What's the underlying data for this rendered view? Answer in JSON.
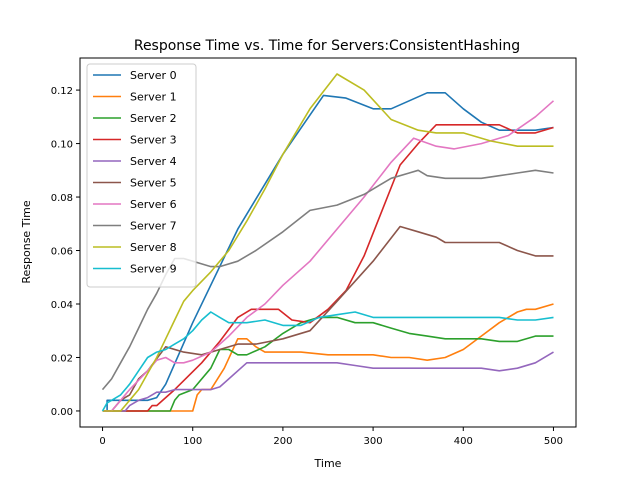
{
  "chart_data": {
    "type": "line",
    "title": "Response Time vs. Time for Servers:ConsistentHashing",
    "xlabel": "Time",
    "ylabel": "Response Time",
    "xlim": [
      -25,
      525
    ],
    "ylim": [
      -0.006,
      0.132
    ],
    "xticks": [
      0,
      100,
      200,
      300,
      400,
      500
    ],
    "yticks": [
      0.0,
      0.02,
      0.04,
      0.06,
      0.08,
      0.1,
      0.12
    ],
    "legend_position": "top-left",
    "grid": false,
    "series": [
      {
        "name": "Server 0",
        "color": "#1f77b4",
        "x": [
          0,
          5,
          5,
          50,
          60,
          70,
          100,
          150,
          200,
          245,
          270,
          300,
          320,
          340,
          360,
          380,
          400,
          420,
          440,
          460,
          480,
          500
        ],
        "y": [
          0,
          0,
          0.004,
          0.004,
          0.005,
          0.01,
          0.033,
          0.068,
          0.096,
          0.118,
          0.117,
          0.113,
          0.113,
          0.116,
          0.119,
          0.119,
          0.113,
          0.108,
          0.105,
          0.105,
          0.105,
          0.106
        ]
      },
      {
        "name": "Server 1",
        "color": "#ff7f0e",
        "x": [
          0,
          100,
          105,
          110,
          120,
          135,
          150,
          160,
          170,
          180,
          200,
          220,
          250,
          300,
          320,
          340,
          360,
          380,
          400,
          420,
          440,
          460,
          470,
          480,
          500
        ],
        "y": [
          0,
          0,
          0.006,
          0.008,
          0.008,
          0.016,
          0.027,
          0.027,
          0.024,
          0.022,
          0.022,
          0.022,
          0.021,
          0.021,
          0.02,
          0.02,
          0.019,
          0.02,
          0.023,
          0.028,
          0.033,
          0.037,
          0.038,
          0.038,
          0.04
        ]
      },
      {
        "name": "Server 2",
        "color": "#2ca02c",
        "x": [
          0,
          75,
          80,
          85,
          100,
          120,
          130,
          140,
          150,
          160,
          180,
          200,
          220,
          240,
          260,
          280,
          300,
          320,
          340,
          360,
          380,
          400,
          420,
          440,
          460,
          480,
          500
        ],
        "y": [
          0,
          0,
          0.004,
          0.006,
          0.008,
          0.016,
          0.023,
          0.023,
          0.021,
          0.021,
          0.024,
          0.029,
          0.033,
          0.035,
          0.035,
          0.033,
          0.033,
          0.031,
          0.029,
          0.028,
          0.027,
          0.027,
          0.027,
          0.026,
          0.026,
          0.028,
          0.028
        ]
      },
      {
        "name": "Server 3",
        "color": "#d62728",
        "x": [
          0,
          50,
          55,
          60,
          70,
          80,
          95,
          110,
          130,
          150,
          165,
          180,
          195,
          210,
          230,
          250,
          270,
          290,
          310,
          330,
          350,
          370,
          400,
          420,
          440,
          460,
          480,
          500
        ],
        "y": [
          0,
          0,
          0.002,
          0.002,
          0.005,
          0.008,
          0.013,
          0.018,
          0.026,
          0.035,
          0.038,
          0.038,
          0.038,
          0.034,
          0.033,
          0.038,
          0.045,
          0.058,
          0.075,
          0.092,
          0.1,
          0.107,
          0.107,
          0.107,
          0.107,
          0.104,
          0.104,
          0.106
        ]
      },
      {
        "name": "Server 4",
        "color": "#9467bd",
        "x": [
          0,
          25,
          30,
          40,
          50,
          60,
          70,
          80,
          90,
          100,
          120,
          130,
          140,
          160,
          180,
          200,
          240,
          260,
          280,
          300,
          320,
          340,
          360,
          380,
          400,
          420,
          440,
          460,
          480,
          500
        ],
        "y": [
          0,
          0,
          0.002,
          0.004,
          0.005,
          0.007,
          0.007,
          0.008,
          0.008,
          0.008,
          0.008,
          0.009,
          0.012,
          0.018,
          0.018,
          0.018,
          0.018,
          0.018,
          0.017,
          0.016,
          0.016,
          0.016,
          0.016,
          0.016,
          0.016,
          0.016,
          0.015,
          0.016,
          0.018,
          0.022
        ]
      },
      {
        "name": "Server 5",
        "color": "#8c564b",
        "x": [
          0,
          10,
          20,
          30,
          40,
          50,
          70,
          90,
          110,
          130,
          150,
          170,
          200,
          230,
          260,
          300,
          330,
          350,
          370,
          380,
          400,
          420,
          440,
          460,
          480,
          500
        ],
        "y": [
          0,
          0,
          0.004,
          0.006,
          0.012,
          0.015,
          0.024,
          0.022,
          0.021,
          0.023,
          0.025,
          0.025,
          0.027,
          0.03,
          0.041,
          0.056,
          0.069,
          0.067,
          0.065,
          0.063,
          0.063,
          0.063,
          0.063,
          0.06,
          0.058,
          0.058
        ]
      },
      {
        "name": "Server 6",
        "color": "#e377c2",
        "x": [
          0,
          10,
          20,
          30,
          50,
          60,
          70,
          80,
          90,
          100,
          120,
          140,
          160,
          180,
          200,
          230,
          260,
          290,
          320,
          345,
          370,
          390,
          420,
          450,
          480,
          500
        ],
        "y": [
          0,
          0,
          0.004,
          0.008,
          0.015,
          0.019,
          0.02,
          0.018,
          0.018,
          0.019,
          0.022,
          0.028,
          0.035,
          0.04,
          0.047,
          0.056,
          0.068,
          0.08,
          0.093,
          0.102,
          0.099,
          0.098,
          0.1,
          0.103,
          0.11,
          0.116
        ]
      },
      {
        "name": "Server 7",
        "color": "#7f7f7f",
        "x": [
          0,
          10,
          20,
          30,
          40,
          50,
          60,
          70,
          80,
          90,
          100,
          110,
          120,
          130,
          150,
          170,
          200,
          230,
          260,
          290,
          320,
          340,
          350,
          360,
          380,
          400,
          420,
          440,
          460,
          480,
          500
        ],
        "y": [
          0.008,
          0.012,
          0.018,
          0.024,
          0.031,
          0.038,
          0.044,
          0.051,
          0.057,
          0.057,
          0.056,
          0.055,
          0.054,
          0.054,
          0.056,
          0.06,
          0.067,
          0.075,
          0.077,
          0.081,
          0.087,
          0.089,
          0.09,
          0.088,
          0.087,
          0.087,
          0.087,
          0.088,
          0.089,
          0.09,
          0.089
        ]
      },
      {
        "name": "Server 8",
        "color": "#bcbd22",
        "x": [
          0,
          20,
          30,
          40,
          50,
          60,
          70,
          80,
          90,
          100,
          120,
          140,
          160,
          180,
          200,
          230,
          260,
          290,
          320,
          350,
          370,
          400,
          430,
          460,
          480,
          500
        ],
        "y": [
          0,
          0,
          0.004,
          0.008,
          0.014,
          0.02,
          0.027,
          0.034,
          0.041,
          0.045,
          0.052,
          0.06,
          0.071,
          0.083,
          0.096,
          0.113,
          0.126,
          0.12,
          0.109,
          0.105,
          0.104,
          0.104,
          0.101,
          0.099,
          0.099,
          0.099
        ]
      },
      {
        "name": "Server 9",
        "color": "#17becf",
        "x": [
          0,
          5,
          10,
          20,
          30,
          40,
          50,
          60,
          70,
          80,
          90,
          100,
          110,
          120,
          130,
          140,
          160,
          180,
          200,
          220,
          240,
          260,
          280,
          300,
          320,
          340,
          360,
          380,
          400,
          420,
          440,
          460,
          480,
          500
        ],
        "y": [
          0,
          0.003,
          0.004,
          0.006,
          0.01,
          0.015,
          0.02,
          0.022,
          0.023,
          0.025,
          0.027,
          0.03,
          0.034,
          0.037,
          0.035,
          0.033,
          0.033,
          0.034,
          0.032,
          0.032,
          0.035,
          0.036,
          0.037,
          0.035,
          0.035,
          0.035,
          0.035,
          0.035,
          0.035,
          0.035,
          0.035,
          0.034,
          0.034,
          0.035
        ]
      }
    ]
  }
}
